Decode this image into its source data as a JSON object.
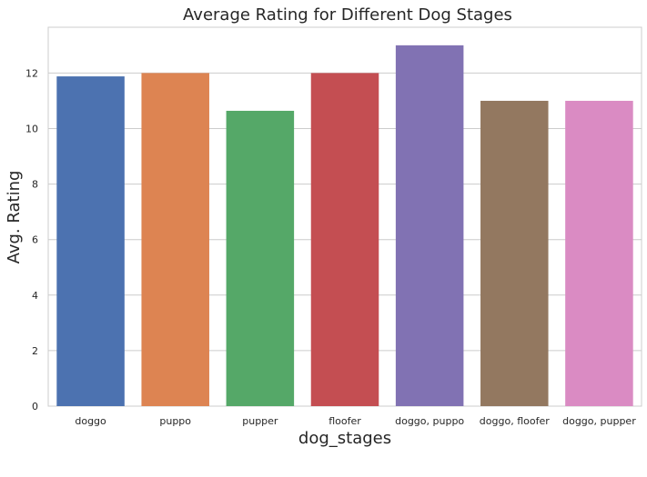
{
  "chart_data": {
    "type": "bar",
    "title": "Average Rating for Different Dog Stages",
    "xlabel": "dog_stages",
    "ylabel": "Avg. Rating",
    "categories": [
      "doggo",
      "puppo",
      "pupper",
      "floofer",
      "doggo, puppo",
      "doggo, floofer",
      "doggo, pupper"
    ],
    "values": [
      11.88,
      12.0,
      10.64,
      12.0,
      13.0,
      11.0,
      11.0
    ],
    "colors": [
      "#4c72b0",
      "#dd8452",
      "#55a868",
      "#c44e52",
      "#8172b3",
      "#937860",
      "#da8bc3"
    ],
    "ylim": [
      0,
      13.65
    ],
    "yticks": [
      0,
      2,
      4,
      6,
      8,
      10,
      12
    ],
    "grid": true,
    "legend": "none"
  }
}
